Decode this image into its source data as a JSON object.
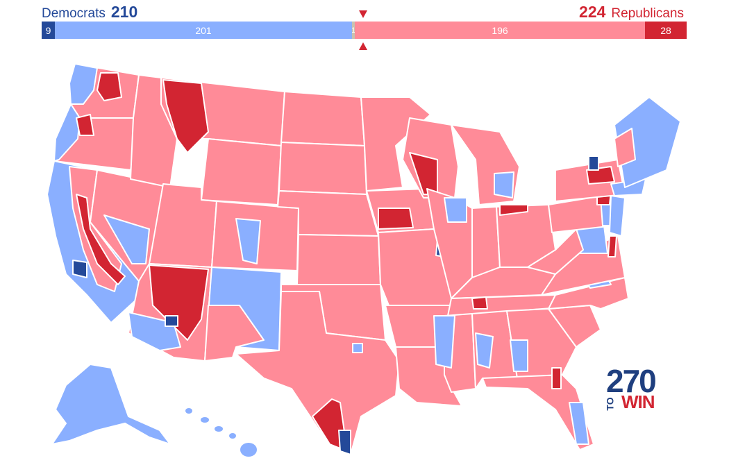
{
  "header": {
    "dem_label": "Democrats",
    "dem_total": "210",
    "rep_total": "224",
    "rep_label": "Republicans"
  },
  "bar": {
    "segments": [
      {
        "name": "safe-dem",
        "label": "9",
        "value": 9,
        "color": "#244999"
      },
      {
        "name": "likely-dem",
        "label": "201",
        "value": 201,
        "color": "#8aafff"
      },
      {
        "name": "tossup",
        "label": "1",
        "value": 1,
        "color": "#c9c2ae"
      },
      {
        "name": "likely-rep",
        "label": "196",
        "value": 196,
        "color": "#ff8b98"
      },
      {
        "name": "safe-rep",
        "label": "28",
        "value": 28,
        "color": "#d22532"
      }
    ],
    "total": 435
  },
  "colors": {
    "safe_dem": "#244999",
    "likely_dem": "#8aafff",
    "likely_rep": "#ff8b98",
    "safe_rep": "#d22532",
    "border": "#ffffff"
  },
  "logo": {
    "number": "270",
    "to": "TO",
    "win": "WIN"
  }
}
